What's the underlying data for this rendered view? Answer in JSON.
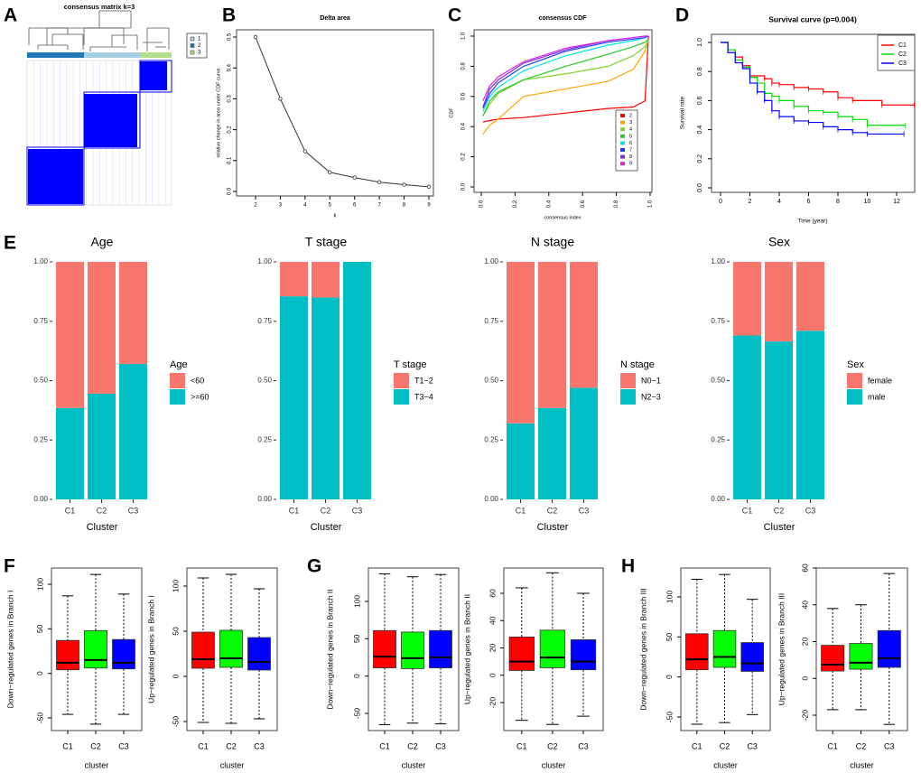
{
  "chart_data": [
    {
      "type": "heatmap",
      "panel": "A",
      "title": "consensus matrix k=3",
      "fill_color": "#0000FF",
      "legend": [
        {
          "label": "1",
          "color": "#A6CEE3"
        },
        {
          "label": "2",
          "color": "#1F78B4"
        },
        {
          "label": "3",
          "color": "#B2DF8A"
        }
      ]
    },
    {
      "type": "line",
      "panel": "B",
      "title": "Delta area",
      "xlabel": "k",
      "ylabel": "relative change in area under CDF curve",
      "x": [
        2,
        3,
        4,
        5,
        6,
        7,
        8,
        9
      ],
      "y": [
        0.5,
        0.3,
        0.13,
        0.062,
        0.045,
        0.03,
        0.022,
        0.015
      ],
      "x_ticks": [
        "2",
        "3",
        "4",
        "5",
        "6",
        "7",
        "8",
        "9"
      ],
      "y_ticks": [
        "0.0",
        "0.1",
        "0.2",
        "0.3",
        "0.4",
        "0.5"
      ]
    },
    {
      "type": "line",
      "panel": "C",
      "title": "consensus CDF",
      "xlabel": "consensus index",
      "ylabel": "CDF",
      "x_ticks": [
        "0.0",
        "0.2",
        "0.4",
        "0.6",
        "0.8",
        "1.0"
      ],
      "y_ticks": [
        "0.0",
        "0.2",
        "0.4",
        "0.6",
        "0.8",
        "1.0"
      ],
      "x": [
        0.01,
        0.05,
        0.1,
        0.25,
        0.5,
        0.75,
        0.9,
        0.97,
        0.99
      ],
      "series": [
        {
          "name": "2",
          "color": "#FF0000",
          "y": [
            0.43,
            0.44,
            0.45,
            0.46,
            0.49,
            0.52,
            0.53,
            0.57,
            1.0
          ]
        },
        {
          "name": "3",
          "color": "#FFA500",
          "y": [
            0.35,
            0.41,
            0.45,
            0.6,
            0.65,
            0.7,
            0.78,
            0.9,
            0.98
          ]
        },
        {
          "name": "4",
          "color": "#7FD32C",
          "y": [
            0.47,
            0.55,
            0.62,
            0.71,
            0.75,
            0.8,
            0.87,
            0.93,
            0.97
          ]
        },
        {
          "name": "5",
          "color": "#22CC22",
          "y": [
            0.47,
            0.57,
            0.63,
            0.71,
            0.8,
            0.88,
            0.93,
            0.96,
            0.98
          ]
        },
        {
          "name": "6",
          "color": "#00E5E5",
          "y": [
            0.5,
            0.6,
            0.66,
            0.77,
            0.87,
            0.94,
            0.97,
            0.99,
            1.0
          ]
        },
        {
          "name": "7",
          "color": "#1E3CFF",
          "y": [
            0.52,
            0.62,
            0.69,
            0.8,
            0.9,
            0.96,
            0.98,
            0.99,
            1.0
          ]
        },
        {
          "name": "8",
          "color": "#7B2CE0",
          "y": [
            0.53,
            0.65,
            0.71,
            0.82,
            0.91,
            0.97,
            0.99,
            1.0,
            1.0
          ]
        },
        {
          "name": "9",
          "color": "#E020E0",
          "y": [
            0.57,
            0.67,
            0.73,
            0.83,
            0.92,
            0.97,
            0.99,
            1.0,
            1.0
          ]
        }
      ]
    },
    {
      "type": "line",
      "panel": "D",
      "title": "Survival curve (p=0.004)",
      "xlabel": "Time (year)",
      "ylabel": "Survival rate",
      "x_ticks": [
        "0",
        "2",
        "4",
        "6",
        "8",
        "10",
        "12"
      ],
      "y_ticks": [
        "0.0",
        "0.2",
        "0.4",
        "0.6",
        "0.8",
        "1.0"
      ],
      "series": [
        {
          "name": "C1",
          "color": "#FF0000",
          "x": [
            0,
            0.5,
            1,
            1.5,
            2,
            3,
            3.5,
            4,
            5,
            6,
            7,
            8,
            9,
            11,
            13.2
          ],
          "y": [
            1,
            0.95,
            0.9,
            0.84,
            0.77,
            0.75,
            0.72,
            0.71,
            0.69,
            0.68,
            0.66,
            0.62,
            0.6,
            0.57,
            0.57
          ]
        },
        {
          "name": "C2",
          "color": "#00DD00",
          "x": [
            0,
            0.5,
            1,
            1.5,
            2,
            2.5,
            3,
            3.5,
            4,
            5,
            6,
            7,
            8,
            9,
            10,
            12.6
          ],
          "y": [
            1,
            0.95,
            0.88,
            0.83,
            0.76,
            0.72,
            0.65,
            0.63,
            0.6,
            0.56,
            0.53,
            0.52,
            0.49,
            0.47,
            0.43,
            0.43
          ]
        },
        {
          "name": "C3",
          "color": "#0000FF",
          "x": [
            0,
            0.5,
            1,
            1.5,
            2,
            2.5,
            3,
            3.5,
            4,
            5,
            6,
            7,
            8,
            9,
            10,
            12.5
          ],
          "y": [
            1,
            0.93,
            0.86,
            0.82,
            0.72,
            0.66,
            0.6,
            0.53,
            0.49,
            0.46,
            0.45,
            0.42,
            0.4,
            0.38,
            0.37,
            0.37
          ]
        }
      ]
    },
    {
      "type": "bar",
      "stacked": true,
      "panel": "E",
      "title": "Age",
      "legend_title": "Age",
      "xlabel": "Cluster",
      "categories": [
        "C1",
        "C2",
        "C3"
      ],
      "y_ticks": [
        "0.00",
        "0.25",
        "0.50",
        "0.75",
        "1.00"
      ],
      "series": [
        {
          "name": "<60",
          "color": "#F8766D",
          "values": [
            0.615,
            0.555,
            0.43
          ]
        },
        {
          "name": ">=60",
          "color": "#00BFC4",
          "values": [
            0.385,
            0.445,
            0.57
          ]
        }
      ]
    },
    {
      "type": "bar",
      "stacked": true,
      "title": "T stage",
      "legend_title": "T stage",
      "xlabel": "Cluster",
      "categories": [
        "C1",
        "C2",
        "C3"
      ],
      "y_ticks": [
        "0.00",
        "0.25",
        "0.50",
        "0.75",
        "1.00"
      ],
      "series": [
        {
          "name": "T1−2",
          "color": "#F8766D",
          "values": [
            0.145,
            0.15,
            0.0
          ]
        },
        {
          "name": "T3−4",
          "color": "#00BFC4",
          "values": [
            0.855,
            0.85,
            1.0
          ]
        }
      ]
    },
    {
      "type": "bar",
      "stacked": true,
      "title": "N stage",
      "legend_title": "N stage",
      "xlabel": "Cluster",
      "categories": [
        "C1",
        "C2",
        "C3"
      ],
      "y_ticks": [
        "0.00",
        "0.25",
        "0.50",
        "0.75",
        "1.00"
      ],
      "series": [
        {
          "name": "N0−1",
          "color": "#F8766D",
          "values": [
            0.68,
            0.615,
            0.53
          ]
        },
        {
          "name": "N2−3",
          "color": "#00BFC4",
          "values": [
            0.32,
            0.385,
            0.47
          ]
        }
      ]
    },
    {
      "type": "bar",
      "stacked": true,
      "title": "Sex",
      "legend_title": "Sex",
      "xlabel": "Cluster",
      "categories": [
        "C1",
        "C2",
        "C3"
      ],
      "y_ticks": [
        "0.00",
        "0.25",
        "0.50",
        "0.75",
        "1.00"
      ],
      "series": [
        {
          "name": "female",
          "color": "#F8766D",
          "values": [
            0.31,
            0.335,
            0.29
          ]
        },
        {
          "name": "male",
          "color": "#00BFC4",
          "values": [
            0.69,
            0.665,
            0.71
          ]
        }
      ]
    },
    {
      "type": "box",
      "panel": "F",
      "ylabel": "Down−regulated genes in Branch I",
      "xlabel": "cluster",
      "categories": [
        "C1",
        "C2",
        "C3"
      ],
      "colors": [
        "#FF0000",
        "#00FF00",
        "#0000FF"
      ],
      "y_ticks": [
        "-50",
        "0",
        "50",
        "100"
      ],
      "stats": [
        [
          -46,
          4,
          12,
          37,
          87
        ],
        [
          -57,
          6,
          15,
          48,
          111
        ],
        [
          -46,
          5,
          12,
          38,
          89
        ]
      ]
    },
    {
      "type": "box",
      "ylabel": "Up−regulated genes in Branch I",
      "xlabel": "cluster",
      "categories": [
        "C1",
        "C2",
        "C3"
      ],
      "colors": [
        "#FF0000",
        "#00FF00",
        "#0000FF"
      ],
      "y_ticks": [
        "-50",
        "0",
        "50",
        "100"
      ],
      "stats": [
        [
          -51,
          9,
          19,
          49,
          109
        ],
        [
          -52,
          10,
          20,
          51,
          113
        ],
        [
          -47,
          7,
          16,
          43,
          97
        ]
      ]
    },
    {
      "type": "box",
      "panel": "G",
      "ylabel": "Down−regulated genes in Branch II",
      "xlabel": "cluster",
      "categories": [
        "C1",
        "C2",
        "C3"
      ],
      "colors": [
        "#FF0000",
        "#00FF00",
        "#0000FF"
      ],
      "y_ticks": [
        "-50",
        "0",
        "50",
        "100"
      ],
      "stats": [
        [
          -65,
          11,
          26,
          61,
          137
        ],
        [
          -63,
          10,
          24,
          59,
          133
        ],
        [
          -64,
          11,
          25,
          61,
          136
        ]
      ]
    },
    {
      "type": "box",
      "ylabel": "Up−regulated genes in Branch II",
      "xlabel": "cluster",
      "categories": [
        "C1",
        "C2",
        "C3"
      ],
      "colors": [
        "#FF0000",
        "#00FF00",
        "#0000FF"
      ],
      "y_ticks": [
        "-20",
        "0",
        "20",
        "40",
        "60"
      ],
      "stats": [
        [
          -33,
          3.5,
          10,
          28,
          64
        ],
        [
          -36,
          5.5,
          13,
          33,
          75
        ],
        [
          -30,
          4,
          10,
          26,
          60
        ]
      ]
    },
    {
      "type": "box",
      "panel": "H",
      "ylabel": "Down−regulated genes in Branch III",
      "xlabel": "cluster",
      "categories": [
        "C1",
        "C2",
        "C3"
      ],
      "colors": [
        "#FF0000",
        "#00FF00",
        "#0000FF"
      ],
      "y_ticks": [
        "-50",
        "0",
        "50",
        "100"
      ],
      "stats": [
        [
          -59,
          9,
          22,
          54,
          122
        ],
        [
          -57,
          12,
          25,
          58,
          128
        ],
        [
          -47,
          7,
          17,
          43,
          97
        ]
      ]
    },
    {
      "type": "box",
      "ylabel": "Up−regulated genes in Branch III",
      "xlabel": "cluster",
      "categories": [
        "C1",
        "C2",
        "C3"
      ],
      "colors": [
        "#FF0000",
        "#00FF00",
        "#0000FF"
      ],
      "y_ticks": [
        "-20",
        "0",
        "20",
        "40",
        "60"
      ],
      "stats": [
        [
          -17,
          4,
          7.5,
          18,
          38
        ],
        [
          -17,
          5,
          8.5,
          19,
          40
        ],
        [
          -25,
          6,
          11,
          26,
          57
        ]
      ]
    }
  ]
}
